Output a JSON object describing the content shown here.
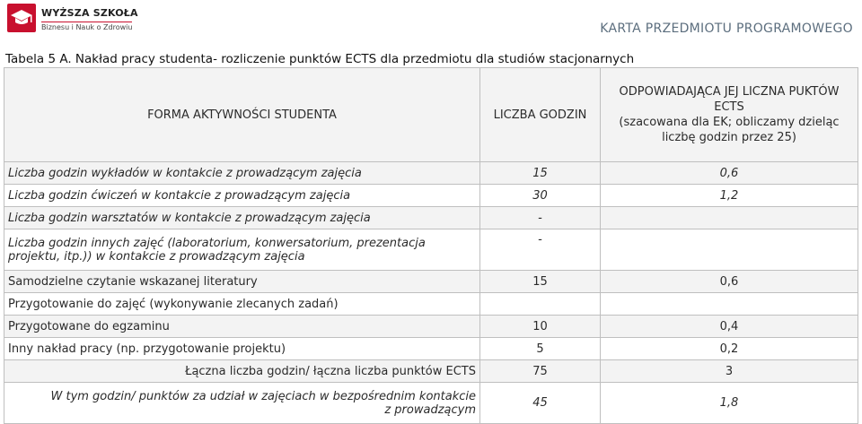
{
  "header": {
    "logo_name": "WYŻSZA SZKOŁA",
    "logo_sub": "Biznesu i Nauk o Zdrowiu",
    "doc_title": "KARTA PRZEDMIOTU PROGRAMOWEGO"
  },
  "caption": "Tabela 5 A. Nakład pracy studenta- rozliczenie punktów ECTS dla przedmiotu dla studiów stacjonarnych",
  "table": {
    "headers": {
      "form": "FORMA AKTYWNOŚCI STUDENTA",
      "hours": "LICZBA GODZIN",
      "ects_line1": "ODPOWIADAJĄCA JEJ LICZNA PUKTÓW",
      "ects_line2": "ECTS",
      "ects_line3": "(szacowana dla EK; obliczamy dzieląc",
      "ects_line4": "liczbę godzin przez 25)"
    },
    "rows": [
      {
        "activity": "Liczba godzin wykładów w kontakcie z prowadzącym zajęcia",
        "hours": "15",
        "ects": "0,6"
      },
      {
        "activity": "Liczba godzin ćwiczeń w kontakcie z prowadzącym zajęcia",
        "hours": "30",
        "ects": "1,2"
      },
      {
        "activity": "Liczba godzin warsztatów w kontakcie z prowadzącym zajęcia",
        "hours": "-",
        "ects": ""
      },
      {
        "activity_line1": "Liczba godzin innych zajęć (laboratorium, konwersatorium, prezentacja",
        "activity_line2": "projektu, itp.)) w kontakcie  z prowadzącym zajęcia",
        "hours": "-",
        "ects": ""
      },
      {
        "activity": "Samodzielne czytanie wskazanej literatury",
        "hours": "15",
        "ects": "0,6"
      },
      {
        "activity": "Przygotowanie do zajęć (wykonywanie zlecanych zadań)",
        "hours": "",
        "ects": ""
      },
      {
        "activity": "Przygotowane do egzaminu",
        "hours": "10",
        "ects": "0,4"
      },
      {
        "activity": "Inny nakład pracy (np. przygotowanie projektu)",
        "hours": "5",
        "ects": "0,2"
      }
    ],
    "total": {
      "label": "Łączna liczba godzin/ łączna liczba punktów ECTS",
      "hours": "75",
      "ects": "3"
    },
    "contact": {
      "label_line1": "W tym godzin/ punktów za udział w zajęciach w bezpośrednim kontakcie",
      "label_line2": "z prowadzącym",
      "hours": "45",
      "ects": "1,8"
    }
  }
}
